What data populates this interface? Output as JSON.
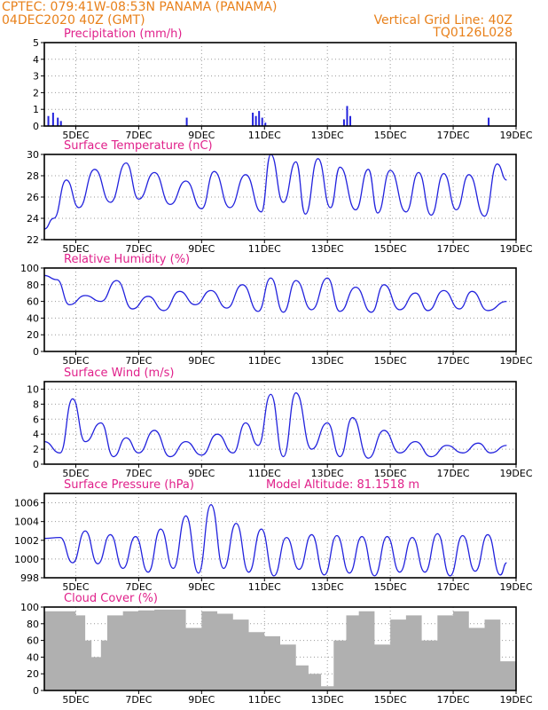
{
  "header": {
    "line1": "CPTEC:   079:41W-08:53N   PANAMA (PANAMA)",
    "line2": "04DEC2020 40Z (GMT)",
    "right1": "Vertical Grid Line: 40Z",
    "right2": "TQ0126L028"
  },
  "colors": {
    "header": "#e8801a",
    "title": "#e0208a",
    "line": "#2222dd",
    "cloud": "#b0b0b0"
  },
  "chart_data": [
    {
      "type": "bar",
      "title": "Precipitation (mm/h)",
      "x_ticks": [
        "5DEC",
        "7DEC",
        "9DEC",
        "11DEC",
        "13DEC",
        "15DEC",
        "17DEC",
        "19DEC"
      ],
      "yticks": [
        0,
        1,
        2,
        3,
        4,
        5
      ],
      "ylim": [
        0,
        5
      ],
      "grid": true,
      "x": [
        0.1,
        0.25,
        0.4,
        0.5,
        4.5,
        6.6,
        6.7,
        6.8,
        6.9,
        7.0,
        9.5,
        9.6,
        9.7,
        14.1
      ],
      "values": [
        0.6,
        0.8,
        0.5,
        0.3,
        0.5,
        0.8,
        0.6,
        0.9,
        0.5,
        0.2,
        0.4,
        1.2,
        0.6,
        0.5
      ]
    },
    {
      "type": "line",
      "title": "Surface Temperature (nC)",
      "x_ticks": [
        "5DEC",
        "7DEC",
        "9DEC",
        "11DEC",
        "13DEC",
        "15DEC",
        "17DEC",
        "19DEC"
      ],
      "yticks": [
        22,
        24,
        26,
        28,
        30
      ],
      "ylim": [
        22,
        30
      ],
      "grid": true,
      "x": [
        0,
        0.3,
        0.7,
        1.1,
        1.6,
        2.1,
        2.6,
        3.0,
        3.5,
        4.0,
        4.5,
        5.0,
        5.4,
        5.9,
        6.4,
        6.9,
        7.2,
        7.6,
        8.0,
        8.3,
        8.7,
        9.1,
        9.4,
        9.9,
        10.3,
        10.6,
        11.0,
        11.5,
        11.9,
        12.3,
        12.7,
        13.1,
        13.5,
        14.0,
        14.4,
        14.7
      ],
      "values": [
        23.0,
        24.0,
        27.6,
        25.0,
        28.6,
        25.5,
        29.2,
        25.8,
        28.3,
        25.3,
        27.5,
        24.9,
        28.4,
        25.0,
        28.1,
        24.6,
        30.0,
        25.5,
        29.3,
        24.4,
        29.6,
        25.0,
        28.8,
        24.8,
        28.6,
        24.5,
        28.5,
        24.6,
        28.3,
        24.3,
        28.2,
        24.8,
        28.1,
        24.2,
        29.1,
        27.6
      ]
    },
    {
      "type": "line",
      "title": "Relative Humidity (%)",
      "x_ticks": [
        "5DEC",
        "7DEC",
        "9DEC",
        "11DEC",
        "13DEC",
        "15DEC",
        "17DEC",
        "19DEC"
      ],
      "yticks": [
        0,
        20,
        40,
        60,
        80,
        100
      ],
      "ylim": [
        0,
        100
      ],
      "grid": true,
      "x": [
        0,
        0.4,
        0.8,
        1.3,
        1.8,
        2.3,
        2.8,
        3.3,
        3.8,
        4.3,
        4.8,
        5.3,
        5.8,
        6.3,
        6.8,
        7.2,
        7.6,
        8.0,
        8.5,
        9.0,
        9.4,
        9.9,
        10.4,
        10.8,
        11.3,
        11.8,
        12.2,
        12.7,
        13.2,
        13.6,
        14.1,
        14.7
      ],
      "values": [
        91,
        86,
        56,
        67,
        60,
        85,
        51,
        66,
        49,
        72,
        56,
        73,
        52,
        80,
        48,
        88,
        47,
        85,
        50,
        88,
        48,
        77,
        47,
        80,
        50,
        70,
        49,
        73,
        51,
        72,
        49,
        60
      ]
    },
    {
      "type": "line",
      "title": "Surface Wind (m/s)",
      "x_ticks": [
        "5DEC",
        "7DEC",
        "9DEC",
        "11DEC",
        "13DEC",
        "15DEC",
        "17DEC",
        "19DEC"
      ],
      "yticks": [
        0,
        2,
        4,
        6,
        8,
        10
      ],
      "ylim": [
        0,
        11
      ],
      "grid": true,
      "x": [
        0,
        0.5,
        0.9,
        1.3,
        1.8,
        2.2,
        2.6,
        3.0,
        3.5,
        4.0,
        4.5,
        5.0,
        5.5,
        6.0,
        6.4,
        6.8,
        7.2,
        7.6,
        8.0,
        8.5,
        9.0,
        9.4,
        9.8,
        10.3,
        10.8,
        11.3,
        11.8,
        12.3,
        12.8,
        13.3,
        13.8,
        14.2,
        14.7
      ],
      "values": [
        3.0,
        1.5,
        8.7,
        3.0,
        5.5,
        1.0,
        3.5,
        1.5,
        4.5,
        1.0,
        3.0,
        1.2,
        4.0,
        1.5,
        5.5,
        2.5,
        9.3,
        1.0,
        9.5,
        2.0,
        5.5,
        1.0,
        6.2,
        0.8,
        4.5,
        1.5,
        3.0,
        1.0,
        2.5,
        1.5,
        2.8,
        1.5,
        2.5
      ]
    },
    {
      "type": "line",
      "title": "Surface Pressure (hPa)",
      "annotation": "Model Altitude: 81.1518 m",
      "x_ticks": [
        "5DEC",
        "7DEC",
        "9DEC",
        "11DEC",
        "13DEC",
        "15DEC",
        "17DEC",
        "19DEC"
      ],
      "yticks": [
        998,
        1000,
        1002,
        1004,
        1006
      ],
      "ylim": [
        998,
        1007
      ],
      "grid": true,
      "x": [
        0,
        0.5,
        0.9,
        1.3,
        1.7,
        2.1,
        2.5,
        2.9,
        3.3,
        3.7,
        4.1,
        4.5,
        4.9,
        5.3,
        5.7,
        6.1,
        6.5,
        6.9,
        7.3,
        7.7,
        8.1,
        8.5,
        8.9,
        9.3,
        9.7,
        10.1,
        10.5,
        10.9,
        11.3,
        11.7,
        12.1,
        12.5,
        12.9,
        13.3,
        13.7,
        14.1,
        14.5,
        14.7
      ],
      "values": [
        1002.2,
        1002.3,
        999.6,
        1003.0,
        999.5,
        1002.6,
        999.0,
        1002.4,
        998.6,
        1003.2,
        999.0,
        1004.6,
        998.5,
        1005.8,
        999.0,
        1003.8,
        998.6,
        1003.2,
        998.2,
        1002.3,
        998.9,
        1002.6,
        998.3,
        1002.5,
        998.5,
        1002.4,
        998.2,
        1002.4,
        998.6,
        1002.3,
        998.6,
        1002.7,
        998.2,
        1002.5,
        998.7,
        1002.6,
        998.3,
        999.6
      ]
    },
    {
      "type": "bar",
      "title": "Cloud Cover (%)",
      "x_ticks": [
        "5DEC",
        "7DEC",
        "9DEC",
        "11DEC",
        "13DEC",
        "15DEC",
        "17DEC",
        "19DEC"
      ],
      "yticks": [
        0,
        20,
        40,
        60,
        80,
        100
      ],
      "ylim": [
        0,
        100
      ],
      "grid": true,
      "x": [
        0,
        0.5,
        1.0,
        1.3,
        1.5,
        1.8,
        2.0,
        2.5,
        3.0,
        3.5,
        4.0,
        4.5,
        5.0,
        5.5,
        6.0,
        6.5,
        7.0,
        7.5,
        8.0,
        8.4,
        8.8,
        9.2,
        9.6,
        10.0,
        10.5,
        11.0,
        11.5,
        12.0,
        12.5,
        13.0,
        13.5,
        14.0,
        14.5
      ],
      "values": [
        95,
        95,
        90,
        60,
        40,
        60,
        90,
        95,
        96,
        97,
        97,
        75,
        95,
        92,
        85,
        70,
        65,
        55,
        30,
        20,
        5,
        60,
        90,
        95,
        55,
        85,
        90,
        60,
        90,
        95,
        75,
        85,
        35
      ]
    }
  ]
}
